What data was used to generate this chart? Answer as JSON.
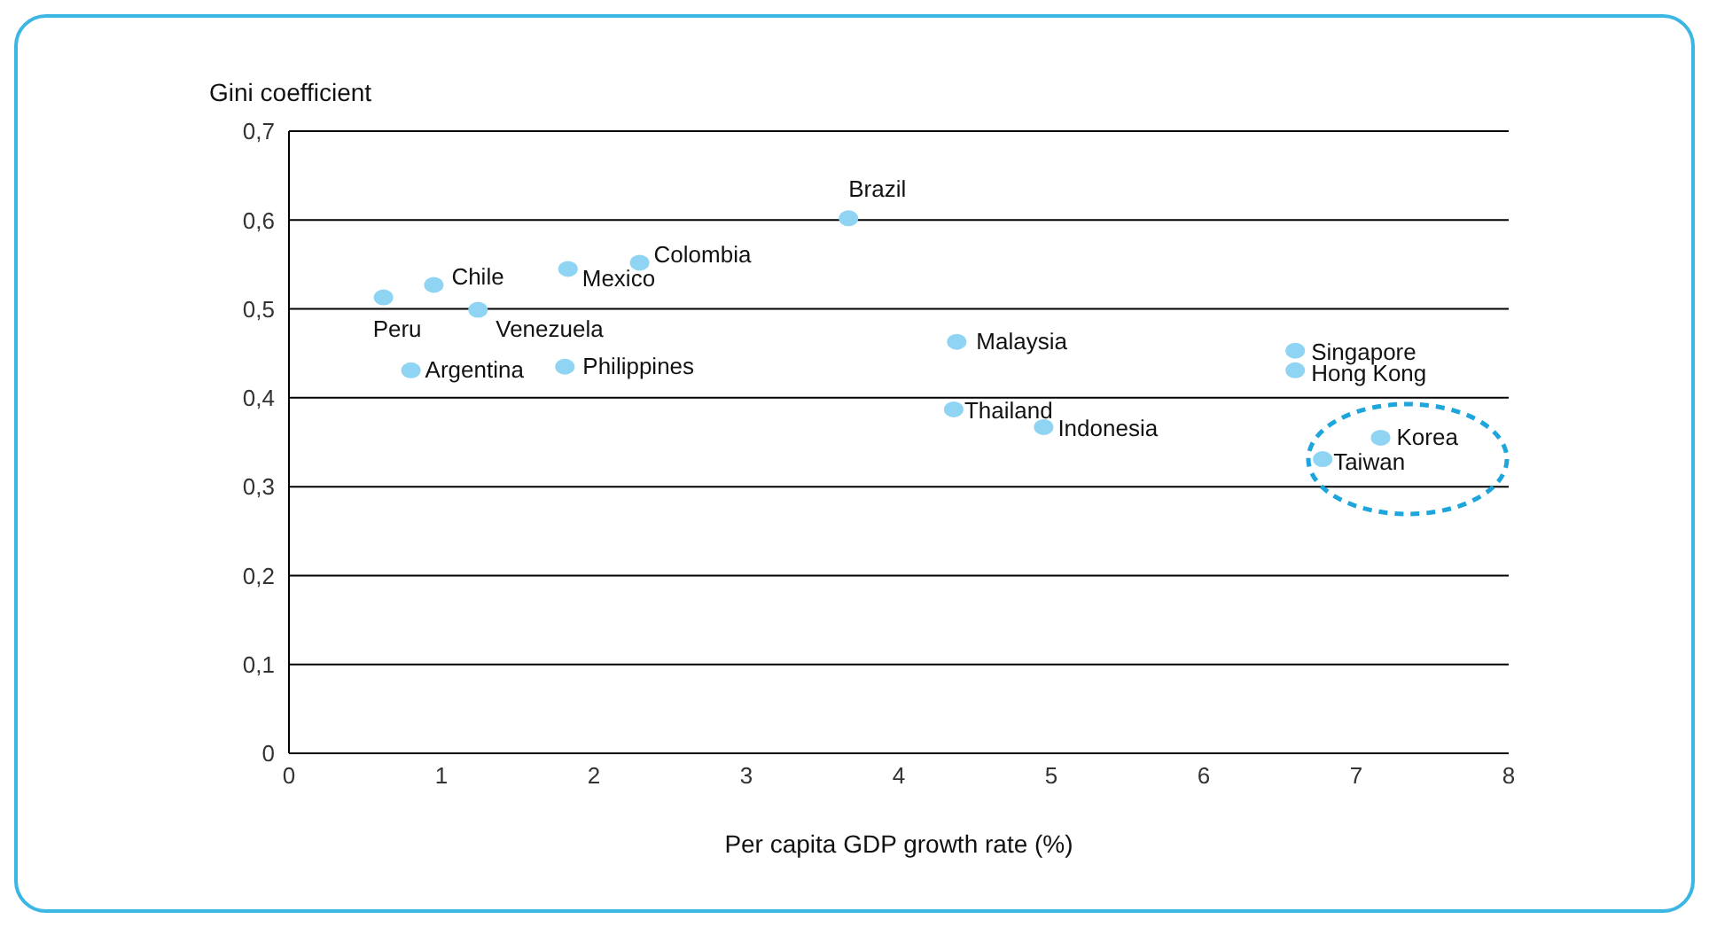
{
  "chart_data": {
    "type": "scatter",
    "xlabel": "Per capita GDP growth rate (%)",
    "ylabel": "Gini coefficient",
    "x": [
      0.62,
      0.95,
      1.24,
      0.8,
      1.83,
      1.81,
      2.3,
      3.67,
      4.38,
      4.36,
      4.95,
      6.6,
      6.6,
      7.16,
      6.78
    ],
    "series": [
      {
        "color": "#8fd4f2",
        "values": [
          0.513,
          0.527,
          0.499,
          0.431,
          0.545,
          0.435,
          0.552,
          0.602,
          0.463,
          0.387,
          0.367,
          0.453,
          0.431,
          0.355,
          0.331
        ]
      }
    ],
    "xlim": [
      0,
      8
    ],
    "xticks": [
      0,
      1,
      2,
      3,
      4,
      5,
      6,
      7,
      8
    ],
    "ylim": [
      0,
      0.7
    ],
    "yticks": [
      0,
      {
        "value": 0.1,
        "label": "0,1"
      },
      {
        "value": 0.2,
        "label": "0,2"
      },
      {
        "value": 0.3,
        "label": "0,3"
      },
      {
        "value": 0.4,
        "label": "0,4"
      },
      {
        "value": 0.5,
        "label": "0,5"
      },
      {
        "value": 0.6,
        "label": "0,6"
      },
      {
        "value": 0.7,
        "label": "0,7"
      }
    ],
    "grid": "y",
    "marker": "circle",
    "legend": false,
    "annotations": [
      {
        "text": "Peru",
        "x": 0.62,
        "y": 0.513
      },
      {
        "text": "Chile",
        "x": 0.95,
        "y": 0.527
      },
      {
        "text": "Venezuela",
        "x": 1.24,
        "y": 0.499
      },
      {
        "text": "Argentina",
        "x": 0.8,
        "y": 0.431
      },
      {
        "text": "Mexico",
        "x": 1.83,
        "y": 0.545
      },
      {
        "text": "Philippines",
        "x": 1.81,
        "y": 0.435
      },
      {
        "text": "Colombia",
        "x": 2.3,
        "y": 0.552
      },
      {
        "text": "Brazil",
        "x": 3.67,
        "y": 0.602
      },
      {
        "text": "Malaysia",
        "x": 4.38,
        "y": 0.463
      },
      {
        "text": "Thailand",
        "x": 4.36,
        "y": 0.387
      },
      {
        "text": "Indonesia",
        "x": 4.95,
        "y": 0.367
      },
      {
        "text": "Singapore",
        "x": 6.6,
        "y": 0.453
      },
      {
        "text": "Hong Kong",
        "x": 6.6,
        "y": 0.431
      },
      {
        "text": "Korea",
        "x": 7.16,
        "y": 0.355
      },
      {
        "text": "Taiwan",
        "x": 6.78,
        "y": 0.331
      }
    ]
  }
}
